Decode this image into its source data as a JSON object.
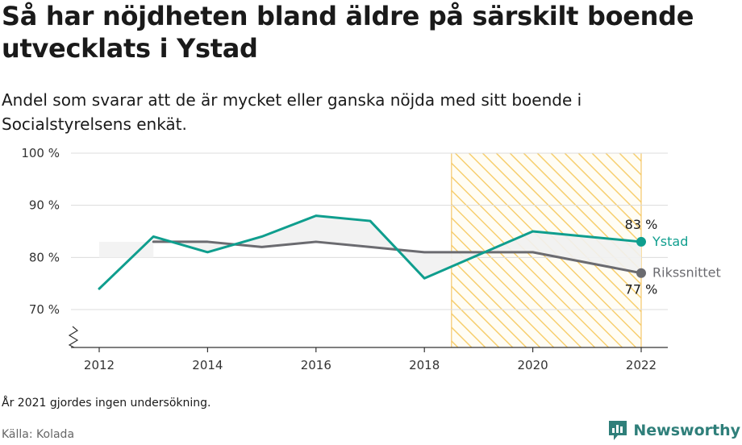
{
  "title": "Så har nöjdheten bland äldre på särskilt boende utvecklats i Ystad",
  "subtitle": "Andel som svarar att de är mycket eller ganska nöjda med sitt boende i Socialstyrelsens enkät.",
  "note": "År 2021 gjordes ingen undersökning.",
  "source": "Källa: Kolada",
  "brand": {
    "name": "Newsworthy",
    "logo_icon": "newsworthy-logo-icon",
    "color": "#2f7f7a"
  },
  "chart_data": {
    "type": "line",
    "ylim": [
      63,
      100
    ],
    "xlim": [
      2012,
      2022
    ],
    "y_ticks": [
      {
        "value": 100,
        "label": "100 %"
      },
      {
        "value": 90,
        "label": "90 %"
      },
      {
        "value": 80,
        "label": "80 %"
      },
      {
        "value": 70,
        "label": "70 %"
      }
    ],
    "x_ticks": [
      {
        "value": 2012,
        "label": "2012"
      },
      {
        "value": 2014,
        "label": "2014"
      },
      {
        "value": 2016,
        "label": "2016"
      },
      {
        "value": 2018,
        "label": "2018"
      },
      {
        "value": 2020,
        "label": "2020"
      },
      {
        "value": 2022,
        "label": "2022"
      }
    ],
    "axis_break": true,
    "grid": true,
    "highlight_period": {
      "from": 2018.5,
      "to": 2022,
      "fill": "#fbe3a8",
      "stroke": "#f5c76a",
      "pattern": "diagonal-hatch"
    },
    "series": [
      {
        "name": "Ystad",
        "color": "#0f9e8e",
        "points": [
          {
            "x": 2012,
            "y": 74
          },
          {
            "x": 2013,
            "y": 84
          },
          {
            "x": 2014,
            "y": 81
          },
          {
            "x": 2015,
            "y": 84
          },
          {
            "x": 2016,
            "y": 88
          },
          {
            "x": 2017,
            "y": 87
          },
          {
            "x": 2018,
            "y": 76
          },
          {
            "x": 2020,
            "y": 85
          },
          {
            "x": 2022,
            "y": 83
          }
        ],
        "end_label": "83 %"
      },
      {
        "name": "Rikssnittet",
        "color": "#6b6b70",
        "points": [
          {
            "x": 2013,
            "y": 83
          },
          {
            "x": 2014,
            "y": 83
          },
          {
            "x": 2015,
            "y": 82
          },
          {
            "x": 2016,
            "y": 83
          },
          {
            "x": 2017,
            "y": 82
          },
          {
            "x": 2018,
            "y": 81
          },
          {
            "x": 2020,
            "y": 81
          },
          {
            "x": 2022,
            "y": 77
          }
        ],
        "end_label": "77 %"
      }
    ],
    "reference_band": {
      "from_x": 2012,
      "to_x": 2013,
      "value": 83,
      "fill": "#f3f3f3"
    }
  }
}
